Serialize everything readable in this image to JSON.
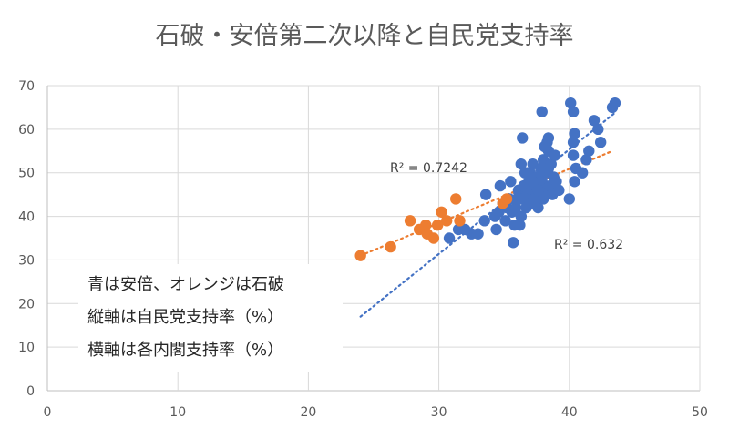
{
  "chart_data": {
    "type": "scatter",
    "title": "石破・安倍第二次以降と自民党支持率",
    "xlim": [
      0,
      50
    ],
    "ylim": [
      0,
      70
    ],
    "xticks": [
      0,
      10,
      20,
      30,
      40,
      50
    ],
    "yticks": [
      0,
      10,
      20,
      30,
      40,
      50,
      60,
      70
    ],
    "grid": true,
    "legend": "none",
    "annotations": [
      "青は安倍、オレンジは石破",
      "縦軸は自民党支持率（%）",
      "横軸は各内閣支持率（%）"
    ],
    "series": [
      {
        "color": "#4472c4",
        "trendline": {
          "x0": 24.0,
          "y0": 17.0,
          "x1": 43.6,
          "y1": 64.0,
          "label": "R² = 0.632"
        },
        "points": [
          [
            30.8,
            35
          ],
          [
            31.5,
            37
          ],
          [
            32.0,
            37
          ],
          [
            32.5,
            36
          ],
          [
            33.0,
            36
          ],
          [
            33.5,
            39
          ],
          [
            33.6,
            45
          ],
          [
            34.4,
            37
          ],
          [
            34.3,
            40
          ],
          [
            34.6,
            41
          ],
          [
            34.7,
            47
          ],
          [
            34.9,
            43
          ],
          [
            35.1,
            39
          ],
          [
            35.2,
            42
          ],
          [
            35.4,
            44
          ],
          [
            35.5,
            48
          ],
          [
            35.7,
            34
          ],
          [
            35.6,
            41
          ],
          [
            35.8,
            38
          ],
          [
            35.9,
            42
          ],
          [
            36.0,
            44
          ],
          [
            36.1,
            46
          ],
          [
            36.2,
            38
          ],
          [
            36.3,
            40
          ],
          [
            36.3,
            52
          ],
          [
            36.4,
            44
          ],
          [
            36.5,
            47
          ],
          [
            36.6,
            50
          ],
          [
            36.7,
            42
          ],
          [
            36.8,
            45
          ],
          [
            36.9,
            48
          ],
          [
            37.0,
            50
          ],
          [
            37.0,
            43
          ],
          [
            37.1,
            46
          ],
          [
            37.2,
            52
          ],
          [
            37.3,
            44
          ],
          [
            37.4,
            47
          ],
          [
            37.5,
            49
          ],
          [
            37.6,
            42
          ],
          [
            37.7,
            45
          ],
          [
            37.8,
            51
          ],
          [
            37.9,
            48
          ],
          [
            38.0,
            44
          ],
          [
            38.0,
            53
          ],
          [
            38.1,
            46
          ],
          [
            38.2,
            50
          ],
          [
            38.3,
            57
          ],
          [
            38.4,
            55
          ],
          [
            38.5,
            47
          ],
          [
            38.6,
            52
          ],
          [
            38.7,
            45
          ],
          [
            38.8,
            49
          ],
          [
            38.9,
            54
          ],
          [
            39.0,
            48
          ],
          [
            39.2,
            46
          ],
          [
            36.8,
            50
          ],
          [
            37.2,
            48
          ],
          [
            37.6,
            46
          ],
          [
            38.4,
            51
          ],
          [
            37.9,
            64
          ],
          [
            36.4,
            58
          ],
          [
            38.4,
            58
          ],
          [
            38.1,
            56
          ],
          [
            40.1,
            66
          ],
          [
            40.3,
            64
          ],
          [
            40.4,
            59
          ],
          [
            40.3,
            57
          ],
          [
            40.3,
            54
          ],
          [
            40.0,
            44
          ],
          [
            40.4,
            48
          ],
          [
            40.5,
            51
          ],
          [
            41.0,
            50
          ],
          [
            41.3,
            53
          ],
          [
            41.5,
            55
          ],
          [
            41.9,
            62
          ],
          [
            42.2,
            60
          ],
          [
            42.4,
            57
          ],
          [
            43.3,
            65
          ],
          [
            43.5,
            66
          ]
        ]
      },
      {
        "color": "#ed7d31",
        "trendline": {
          "x0": 24.0,
          "y0": 31.0,
          "x1": 43.3,
          "y1": 55.0,
          "label": "R² = 0.7242"
        },
        "points": [
          [
            24.0,
            31
          ],
          [
            26.3,
            33
          ],
          [
            27.8,
            39
          ],
          [
            28.5,
            37
          ],
          [
            29.0,
            38
          ],
          [
            29.1,
            36
          ],
          [
            29.6,
            35
          ],
          [
            29.9,
            38
          ],
          [
            30.2,
            41
          ],
          [
            30.6,
            39
          ],
          [
            31.3,
            44
          ],
          [
            31.6,
            39
          ],
          [
            34.9,
            43
          ],
          [
            35.2,
            44
          ]
        ]
      }
    ]
  }
}
